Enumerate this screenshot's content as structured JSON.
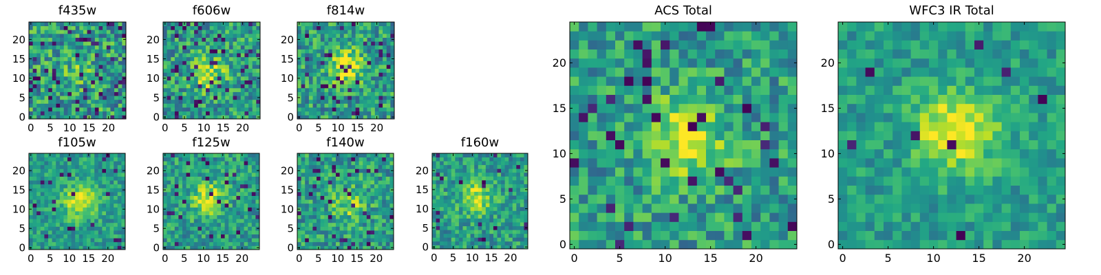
{
  "chart_data": [
    {
      "type": "heatmap",
      "title": "f435w",
      "xticks": [
        "0",
        "5",
        "10",
        "15",
        "20"
      ],
      "yticks": [
        "0",
        "5",
        "10",
        "15",
        "20"
      ],
      "grid": false,
      "colormap": "viridis",
      "xlim": [
        0,
        25
      ],
      "ylim": [
        0,
        25
      ],
      "seed": 11,
      "blob": 0.15,
      "noise": 0.55,
      "dark_fraction": 0.09
    },
    {
      "type": "heatmap",
      "title": "f606w",
      "xticks": [
        "0",
        "5",
        "10",
        "15",
        "20"
      ],
      "yticks": [
        "0",
        "5",
        "10",
        "15",
        "20"
      ],
      "grid": false,
      "colormap": "viridis",
      "xlim": [
        0,
        25
      ],
      "ylim": [
        0,
        25
      ],
      "seed": 23,
      "blob": 0.35,
      "noise": 0.5,
      "dark_fraction": 0.07
    },
    {
      "type": "heatmap",
      "title": "f814w",
      "xticks": [
        "0",
        "5",
        "10",
        "15",
        "20"
      ],
      "yticks": [
        "0",
        "5",
        "10",
        "15",
        "20"
      ],
      "grid": false,
      "colormap": "viridis",
      "xlim": [
        0,
        25
      ],
      "ylim": [
        0,
        25
      ],
      "seed": 37,
      "blob": 0.45,
      "noise": 0.5,
      "dark_fraction": 0.07
    },
    {
      "type": "heatmap",
      "title": "f105w",
      "xticks": [
        "0",
        "5",
        "10",
        "15",
        "20"
      ],
      "yticks": [
        "0",
        "5",
        "10",
        "15",
        "20"
      ],
      "grid": false,
      "colormap": "viridis",
      "xlim": [
        0,
        25
      ],
      "ylim": [
        0,
        25
      ],
      "seed": 41,
      "blob": 0.45,
      "noise": 0.35,
      "dark_fraction": 0.03
    },
    {
      "type": "heatmap",
      "title": "f125w",
      "xticks": [
        "0",
        "5",
        "10",
        "15",
        "20"
      ],
      "yticks": [
        "0",
        "5",
        "10",
        "15",
        "20"
      ],
      "grid": false,
      "colormap": "viridis",
      "xlim": [
        0,
        25
      ],
      "ylim": [
        0,
        25
      ],
      "seed": 53,
      "blob": 0.4,
      "noise": 0.4,
      "dark_fraction": 0.04
    },
    {
      "type": "heatmap",
      "title": "f140w",
      "xticks": [
        "0",
        "5",
        "10",
        "15",
        "20"
      ],
      "yticks": [
        "0",
        "5",
        "10",
        "15",
        "20"
      ],
      "grid": false,
      "colormap": "viridis",
      "xlim": [
        0,
        25
      ],
      "ylim": [
        0,
        25
      ],
      "seed": 67,
      "blob": 0.3,
      "noise": 0.45,
      "dark_fraction": 0.05
    },
    {
      "type": "heatmap",
      "title": "f160w",
      "xticks": [
        "0",
        "5",
        "10",
        "15",
        "20"
      ],
      "yticks": [
        "0",
        "5",
        "10",
        "15",
        "20"
      ],
      "grid": false,
      "colormap": "viridis",
      "xlim": [
        0,
        25
      ],
      "ylim": [
        0,
        25
      ],
      "seed": 79,
      "blob": 0.35,
      "noise": 0.4,
      "dark_fraction": 0.04
    },
    {
      "type": "heatmap",
      "title": "ACS Total",
      "xticks": [
        "0",
        "5",
        "10",
        "15",
        "20"
      ],
      "yticks": [
        "0",
        "5",
        "10",
        "15",
        "20"
      ],
      "grid": false,
      "colormap": "viridis",
      "xlim": [
        0,
        25
      ],
      "ylim": [
        0,
        25
      ],
      "seed": 97,
      "blob": 0.45,
      "noise": 0.45,
      "dark_fraction": 0.06
    },
    {
      "type": "heatmap",
      "title": "WFC3 IR Total",
      "xticks": [
        "0",
        "5",
        "10",
        "15",
        "20"
      ],
      "yticks": [
        "0",
        "5",
        "10",
        "15",
        "20"
      ],
      "grid": false,
      "colormap": "viridis",
      "xlim": [
        0,
        25
      ],
      "ylim": [
        0,
        25
      ],
      "seed": 113,
      "blob": 0.5,
      "noise": 0.3,
      "dark_fraction": 0.02
    }
  ]
}
